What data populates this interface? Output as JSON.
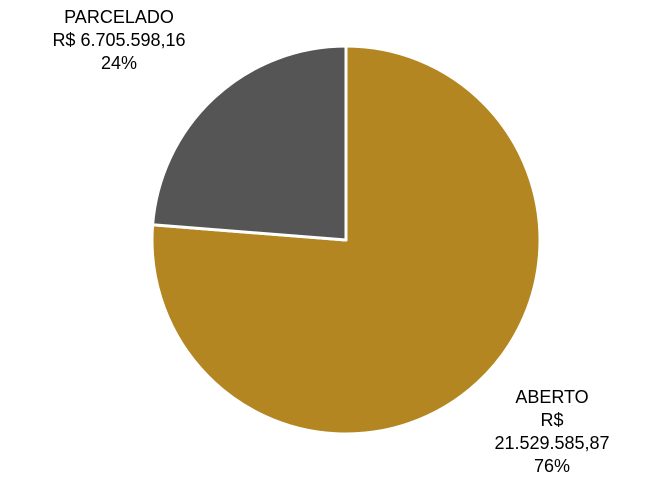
{
  "chart_data": {
    "type": "pie",
    "title": "",
    "slices": [
      {
        "name": "ABERTO",
        "value": 21529585.87,
        "value_label_lines": [
          "R$",
          "21.529.585,87"
        ],
        "percent_label": "76%",
        "color": "#B38622"
      },
      {
        "name": "PARCELADO",
        "value": 6705598.16,
        "value_label_lines": [
          "R$ 6.705.598,16"
        ],
        "percent_label": "24%",
        "color": "#555555"
      }
    ],
    "start_angle_deg": 0,
    "direction": "clockwise",
    "legend": "none",
    "slice_border_color": "#FFFFFF"
  }
}
